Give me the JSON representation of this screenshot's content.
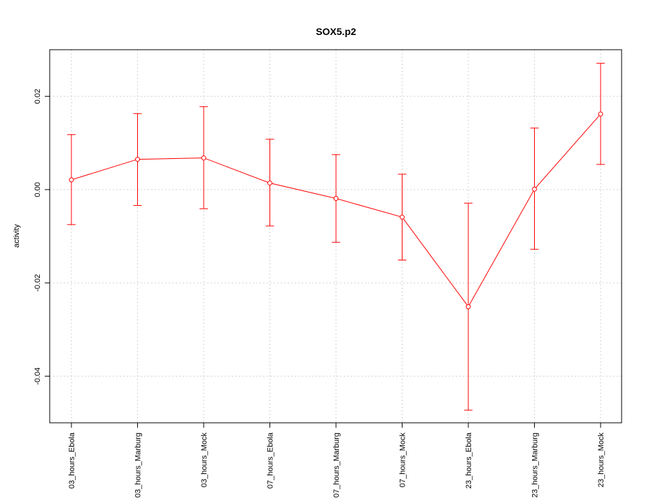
{
  "chart_data": {
    "type": "line",
    "title": "SOX5.p2",
    "xlabel": "",
    "ylabel": "activity",
    "categories": [
      "03_hours_Ebola",
      "03_hours_Marburg",
      "03_hours_Mock",
      "07_hours_Ebola",
      "07_hours_Marburg",
      "07_hours_Mock",
      "23_hours_Ebola",
      "23_hours_Marburg",
      "23_hours_Mock"
    ],
    "series": [
      {
        "values": [
          0.0021,
          0.0065,
          0.0068,
          0.0014,
          -0.0019,
          -0.0059,
          -0.0251,
          0.0001,
          0.0162
        ],
        "error_low": [
          -0.0075,
          -0.0034,
          -0.0041,
          -0.0078,
          -0.0113,
          -0.0151,
          -0.0473,
          -0.0128,
          0.0054
        ],
        "error_high": [
          0.0118,
          0.0163,
          0.0178,
          0.0108,
          0.0075,
          0.0033,
          -0.0029,
          0.0132,
          0.0271
        ]
      }
    ],
    "yticks": [
      -0.04,
      -0.02,
      0.0,
      0.02
    ],
    "ytick_labels": [
      "-0.04",
      "-0.02",
      "0.00",
      "0.02"
    ],
    "ylim": [
      -0.05,
      0.03
    ],
    "grid": true,
    "color": "#ff0000"
  }
}
